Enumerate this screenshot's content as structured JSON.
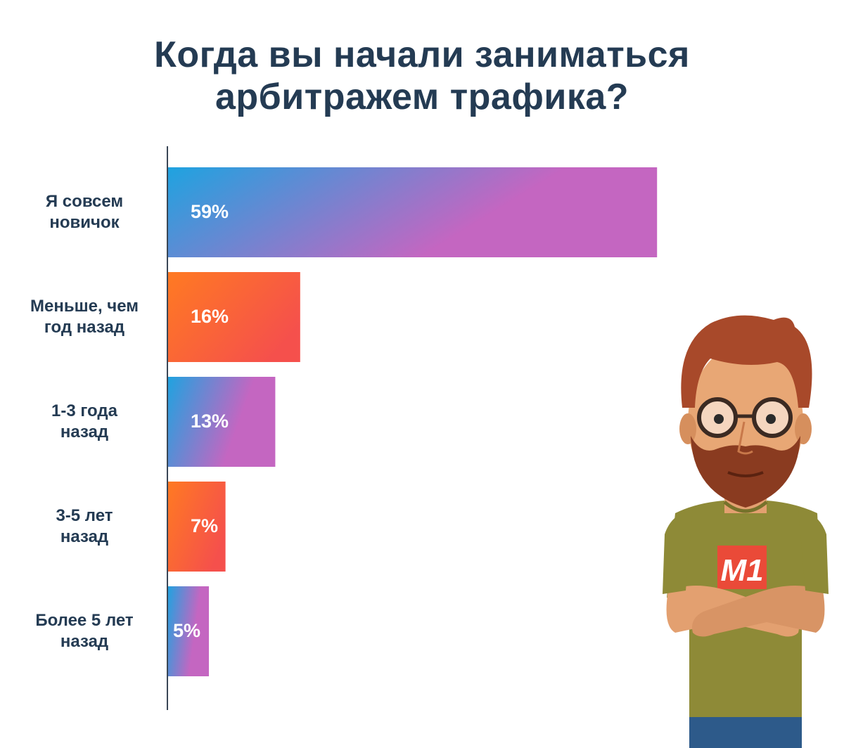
{
  "chart_data": {
    "type": "bar",
    "orientation": "horizontal",
    "title_lines": [
      "Когда вы начали заниматься",
      "арбитражем трафика?"
    ],
    "categories": [
      [
        "Я совсем",
        "новичок"
      ],
      [
        "Меньше, чем",
        "год назад"
      ],
      [
        "1-3 года",
        "назад"
      ],
      [
        "3-5 лет",
        "назад"
      ],
      [
        "Более 5 лет",
        "назад"
      ]
    ],
    "values": [
      59,
      16,
      13,
      7,
      5
    ],
    "value_labels": [
      "59%",
      "16%",
      "13%",
      "7%",
      "5%"
    ],
    "bar_styles": [
      "blue-purple",
      "orange-red",
      "blue-purple",
      "orange-red",
      "blue-purple"
    ],
    "xlim": [
      0,
      100
    ],
    "grid": false,
    "legend": "none"
  },
  "colors": {
    "title": "#243b53",
    "axis": "#3a4756",
    "blue": "#1ea3e0",
    "purple": "#c466c1",
    "orange": "#ff7a22",
    "red": "#f5504c"
  },
  "illustration": {
    "icon": "bearded-man-icon",
    "shirt_logo": "M1"
  }
}
